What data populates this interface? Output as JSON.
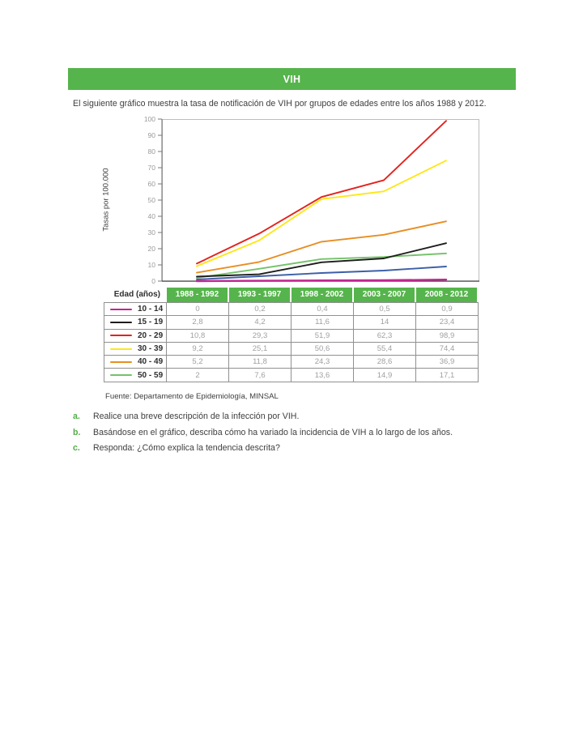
{
  "page": {
    "title": "VIH",
    "intro": "El siguiente gráfico muestra la tasa de notificación de VIH por grupos de edades entre los años 1988 y 2012.",
    "source": "Fuente: Departamento de Epidemiología, MINSAL",
    "questions": [
      {
        "letter": "a.",
        "text": "Realice una breve descripción de la infección por VIH."
      },
      {
        "letter": "b.",
        "text": "Basándose en el gráfico, describa cómo ha variado la incidencia de VIH a lo largo de los años."
      },
      {
        "letter": "c.",
        "text": "Responda: ¿Cómo explica la tendencia descrita?"
      }
    ]
  },
  "colors": {
    "accent_green": "#56b44c",
    "table_border": "#909090",
    "muted_value_text": "#9fa0a3",
    "body_text": "#3e3e3e"
  },
  "chart_data": {
    "type": "line",
    "title": "",
    "xlabel": "",
    "ylabel": "Tasas por 100.000",
    "ylim": [
      0,
      100
    ],
    "yticks": [
      0,
      10,
      20,
      30,
      40,
      50,
      60,
      70,
      80,
      90,
      100
    ],
    "grid": false,
    "legend_position": "table-left-column",
    "categories": [
      "1988 - 1992",
      "1993 - 1997",
      "1998 - 2002",
      "2003 - 2007",
      "2008 - 2012"
    ],
    "series": [
      {
        "name": "10 - 14",
        "color": "#c32490",
        "values": [
          0,
          0.2,
          0.4,
          0.5,
          0.9
        ]
      },
      {
        "name": "15 - 19",
        "color": "#1d1d1b",
        "values": [
          2.8,
          4.2,
          11.6,
          14,
          23.4
        ]
      },
      {
        "name": "20 - 29",
        "color": "#e2231d",
        "values": [
          10.8,
          29.3,
          51.9,
          62.3,
          98.9
        ]
      },
      {
        "name": "30 - 39",
        "color": "#ffe619",
        "values": [
          9.2,
          25.1,
          50.6,
          55.4,
          74.4
        ]
      },
      {
        "name": "40 - 49",
        "color": "#e78e23",
        "values": [
          5.2,
          11.8,
          24.3,
          28.6,
          36.9
        ]
      },
      {
        "name": "50 - 59",
        "color": "#74c269",
        "values": [
          2,
          7.6,
          13.6,
          14.9,
          17.1
        ]
      },
      {
        "name": "",
        "color": "#3c5fa8",
        "values": [
          1,
          3,
          5,
          6.5,
          9
        ],
        "estimated": true,
        "note": "unlabeled blue line, values estimated from pixels"
      }
    ]
  },
  "table": {
    "corner_header": "Edad (años)",
    "column_headers": [
      "1988 - 1992",
      "1993 - 1997",
      "1998 - 2002",
      "2003 - 2007",
      "2008 - 2012"
    ],
    "rows": [
      {
        "label": "10 - 14",
        "values": [
          "0",
          "0,2",
          "0,4",
          "0,5",
          "0,9"
        ]
      },
      {
        "label": "15 - 19",
        "values": [
          "2,8",
          "4,2",
          "11,6",
          "14",
          "23,4"
        ]
      },
      {
        "label": "20 - 29",
        "values": [
          "10,8",
          "29,3",
          "51,9",
          "62,3",
          "98,9"
        ]
      },
      {
        "label": "30 - 39",
        "values": [
          "9,2",
          "25,1",
          "50,6",
          "55,4",
          "74,4"
        ]
      },
      {
        "label": "40 - 49",
        "values": [
          "5,2",
          "11,8",
          "24,3",
          "28,6",
          "36,9"
        ]
      },
      {
        "label": "50 - 59",
        "values": [
          "2",
          "7,6",
          "13,6",
          "14,9",
          "17,1"
        ]
      }
    ]
  }
}
